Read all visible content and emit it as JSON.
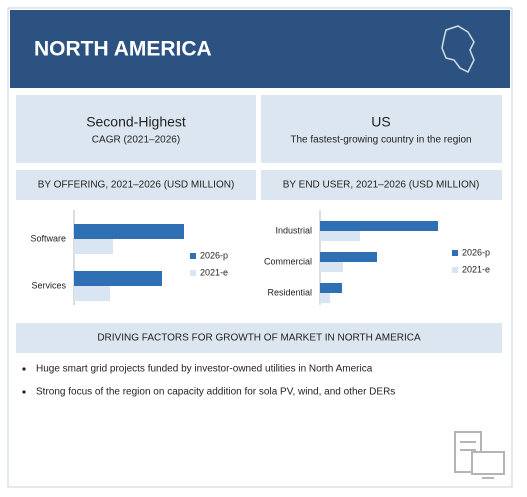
{
  "header": {
    "title": "NORTH AMERICA"
  },
  "highlights": [
    {
      "title": "Second-Highest",
      "subtitle": "CAGR (2021–2026)"
    },
    {
      "title": "US",
      "subtitle": "The fastest-growing country in the region"
    }
  ],
  "chart_data": [
    {
      "type": "hbar",
      "title": "BY OFFERING, 2021–2026 (USD MILLION)",
      "categories": [
        "Software",
        "Services"
      ],
      "series": [
        {
          "name": "2026-p",
          "color": "#2f6fb3",
          "values": [
            110,
            88
          ]
        },
        {
          "name": "2021-e",
          "color": "#dae5f3",
          "values": [
            39,
            36
          ]
        }
      ],
      "xlim": [
        0,
        120
      ],
      "legend": "right"
    },
    {
      "type": "hbar",
      "title": "BY END USER, 2021–2026 (USD MILLION)",
      "categories": [
        "Industrial",
        "Commercial",
        "Residential"
      ],
      "series": [
        {
          "name": "2026-p",
          "color": "#2f6fb3",
          "values": [
            118,
            57,
            22
          ]
        },
        {
          "name": "2021-e",
          "color": "#dae5f3",
          "values": [
            40,
            23,
            10
          ]
        }
      ],
      "xlim": [
        0,
        120
      ],
      "legend": "right"
    }
  ],
  "drivers": {
    "title": "DRIVING FACTORS FOR GROWTH OF MARKET IN NORTH AMERICA",
    "items": [
      "Huge smart grid projects funded by investor-owned utilities in North America",
      "Strong focus of the region on capacity addition for sola PV, wind, and other DERs"
    ]
  }
}
